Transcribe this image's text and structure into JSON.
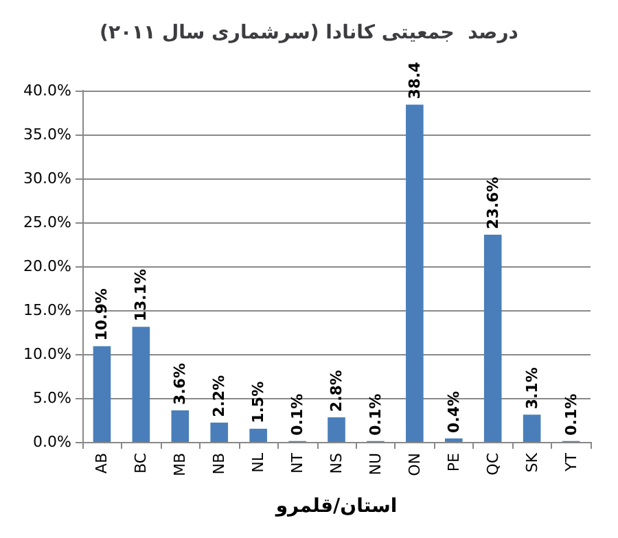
{
  "chart_data": {
    "type": "bar",
    "title": "درصد  جمعیتی کانادا (سرشماری سال ۲۰۱۱)",
    "xlabel": "استان/قلمرو",
    "categories": [
      "AB",
      "BC",
      "MB",
      "NB",
      "NL",
      "NT",
      "NS",
      "NU",
      "ON",
      "PE",
      "QC",
      "SK",
      "YT"
    ],
    "values": [
      10.9,
      13.1,
      3.6,
      2.2,
      1.5,
      0.1,
      2.8,
      0.1,
      38.4,
      0.4,
      23.6,
      3.1,
      0.1
    ],
    "value_labels": [
      "10.9%",
      "13.1%",
      "3.6%",
      "2.2%",
      "1.5%",
      "0.1%",
      "2.8%",
      "0.1%",
      "38.4",
      "0.4%",
      "23.6%",
      "3.1%",
      "0.1%"
    ],
    "color": "#4a7ebb",
    "ylim": [
      0,
      40
    ],
    "yticks": [
      {
        "value": 0,
        "label": "0.0%"
      },
      {
        "value": 5,
        "label": "5.0%"
      },
      {
        "value": 10,
        "label": "10.0%"
      },
      {
        "value": 15,
        "label": "15.0%"
      },
      {
        "value": 20,
        "label": "20.0%"
      },
      {
        "value": 25,
        "label": "25.0%"
      },
      {
        "value": 30,
        "label": "30.0%"
      },
      {
        "value": 35,
        "label": "35.0%"
      },
      {
        "value": 40,
        "label": "40.0%"
      }
    ],
    "grid": "y"
  }
}
